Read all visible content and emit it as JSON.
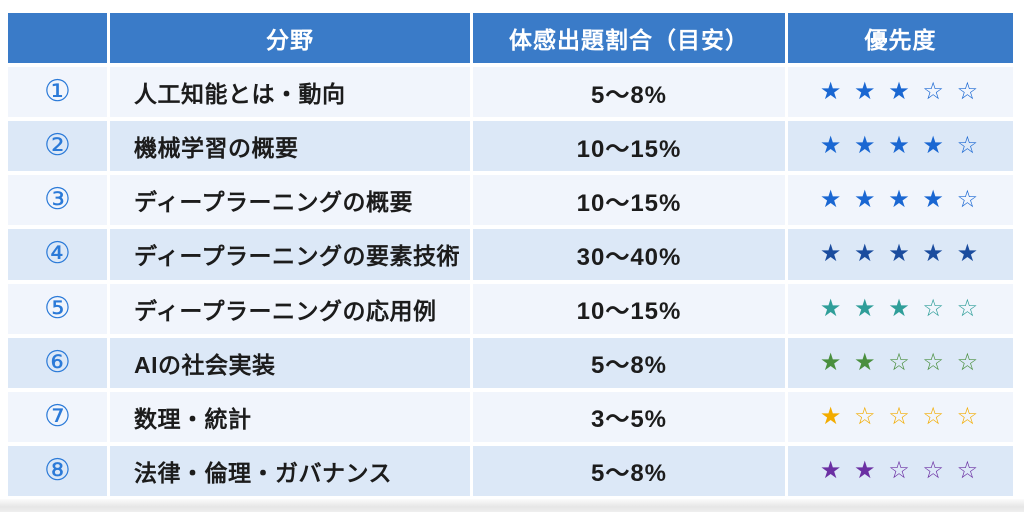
{
  "header": {
    "no_label": "",
    "field_label": "分野",
    "ratio_label": "体感出題割合（目安）",
    "priority_label": "優先度"
  },
  "colors": {
    "header_bg": "#3a7bc8",
    "header_text": "#ffffff",
    "row_odd_bg": "#f1f5fc",
    "row_even_bg": "#dce8f7",
    "circled_number": "#2b7ad8",
    "body_text": "#1c1c1c",
    "stars_blue": "#1a67d2",
    "stars_navy": "#1b4c9e",
    "stars_teal": "#2f9e99",
    "stars_green": "#4a8f3e",
    "stars_amber": "#f2ac00",
    "stars_purple": "#6b30a3"
  },
  "rows": [
    {
      "no": "①",
      "field": "人工知能とは・動向",
      "ratio": "5～8%",
      "stars": "★ ★ ★ ☆ ☆",
      "star_color": "#1a67d2",
      "priority_filled": 3,
      "priority_max": 5
    },
    {
      "no": "②",
      "field": "機械学習の概要",
      "ratio": "10～15%",
      "stars": "★ ★ ★ ★ ☆",
      "star_color": "#1a67d2",
      "priority_filled": 4,
      "priority_max": 5
    },
    {
      "no": "③",
      "field": "ディープラーニングの概要",
      "ratio": "10～15%",
      "stars": "★ ★ ★ ★ ☆",
      "star_color": "#1a67d2",
      "priority_filled": 4,
      "priority_max": 5
    },
    {
      "no": "④",
      "field": "ディープラーニングの要素技術",
      "ratio": "30～40%",
      "stars": "★ ★ ★ ★ ★",
      "star_color": "#1b4c9e",
      "priority_filled": 5,
      "priority_max": 5
    },
    {
      "no": "⑤",
      "field": "ディープラーニングの応用例",
      "ratio": "10～15%",
      "stars": "★ ★ ★ ☆ ☆",
      "star_color": "#2f9e99",
      "priority_filled": 3,
      "priority_max": 5
    },
    {
      "no": "⑥",
      "field": "AIの社会実装",
      "ratio": "5～8%",
      "stars": "★ ★ ☆ ☆ ☆",
      "star_color": "#4a8f3e",
      "priority_filled": 2,
      "priority_max": 5
    },
    {
      "no": "⑦",
      "field": "数理・統計",
      "ratio": "3～5%",
      "stars": "★ ☆ ☆ ☆ ☆",
      "star_color": "#f2ac00",
      "priority_filled": 1,
      "priority_max": 5
    },
    {
      "no": "⑧",
      "field": "法律・倫理・ガバナンス",
      "ratio": "5～8%",
      "stars": "★ ★ ☆ ☆ ☆",
      "star_color": "#6b30a3",
      "priority_filled": 2,
      "priority_max": 5
    }
  ],
  "chart_data": {
    "type": "table",
    "title": "",
    "columns": [
      "",
      "分野",
      "体感出題割合（目安）",
      "優先度"
    ],
    "rows": [
      [
        "①",
        "人工知能とは・動向",
        "5～8%",
        "3/5"
      ],
      [
        "②",
        "機械学習の概要",
        "10～15%",
        "4/5"
      ],
      [
        "③",
        "ディープラーニングの概要",
        "10～15%",
        "4/5"
      ],
      [
        "④",
        "ディープラーニングの要素技術",
        "30～40%",
        "5/5"
      ],
      [
        "⑤",
        "ディープラーニングの応用例",
        "10～15%",
        "3/5"
      ],
      [
        "⑥",
        "AIの社会実装",
        "5～8%",
        "2/5"
      ],
      [
        "⑦",
        "数理・統計",
        "3～5%",
        "1/5"
      ],
      [
        "⑧",
        "法律・倫理・ガバナンス",
        "5～8%",
        "2/5"
      ]
    ],
    "priority_scale_max": 5,
    "priority_filled_per_row": [
      3,
      4,
      4,
      5,
      3,
      2,
      1,
      2
    ]
  }
}
